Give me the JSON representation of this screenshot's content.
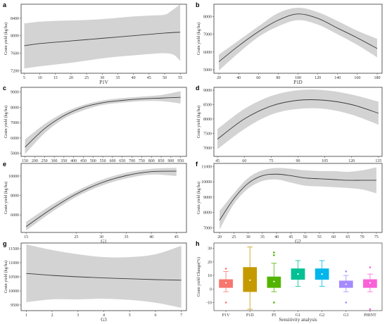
{
  "chart_data": [
    {
      "panel": "a",
      "type": "line",
      "xlabel": "P1V",
      "ylabel": "Grain yield (kg/ha)",
      "xlim": [
        4,
        57
      ],
      "ylim": [
        7140,
        8720
      ],
      "xticks": [
        5,
        10,
        15,
        20,
        25,
        30,
        35,
        40,
        45,
        50,
        55
      ],
      "yticks": [
        7200,
        7600,
        8000,
        8400
      ],
      "series": [
        {
          "x": [
            5,
            10,
            15,
            20,
            25,
            30,
            35,
            40,
            45,
            50,
            55
          ],
          "y": [
            7770,
            7820,
            7850,
            7880,
            7910,
            7940,
            7970,
            8000,
            8030,
            8060,
            8080
          ]
        }
      ],
      "band_upper": [
        {
          "x": [
            5,
            10,
            15,
            20,
            25,
            30,
            35,
            40,
            45,
            50,
            52,
            55
          ],
          "y": [
            8280,
            8320,
            8340,
            8350,
            8360,
            8380,
            8410,
            8440,
            8460,
            8480,
            8560,
            8720
          ]
        }
      ],
      "band_lower": [
        {
          "x": [
            5,
            10,
            15,
            20,
            25,
            30,
            35,
            40,
            45,
            50,
            53,
            55
          ],
          "y": [
            7250,
            7300,
            7340,
            7380,
            7430,
            7480,
            7520,
            7550,
            7580,
            7600,
            7560,
            7420
          ]
        }
      ]
    },
    {
      "panel": "b",
      "type": "line",
      "xlabel": "P1D",
      "ylabel": "Grain yield (kg/ha)",
      "xlim": [
        15,
        185
      ],
      "ylim": [
        4800,
        8700
      ],
      "xticks": [
        20,
        40,
        60,
        80,
        100,
        120,
        140,
        160,
        180
      ],
      "yticks": [
        5000,
        6000,
        7000,
        8000
      ],
      "series": [
        {
          "x": [
            20,
            40,
            60,
            80,
            100,
            120,
            140,
            160,
            180
          ],
          "y": [
            5450,
            6350,
            7150,
            7800,
            8150,
            7900,
            7350,
            6800,
            6200
          ]
        }
      ],
      "band_upper": [
        {
          "x": [
            20,
            40,
            60,
            80,
            100,
            120,
            140,
            160,
            180
          ],
          "y": [
            5850,
            6650,
            7450,
            8200,
            8500,
            8250,
            7750,
            7200,
            6750
          ]
        }
      ],
      "band_lower": [
        {
          "x": [
            20,
            40,
            60,
            80,
            100,
            120,
            140,
            160,
            180
          ],
          "y": [
            4950,
            5950,
            6850,
            7450,
            7800,
            7550,
            7000,
            6400,
            5700
          ]
        }
      ]
    },
    {
      "panel": "c",
      "type": "line",
      "xlabel": "P5",
      "ylabel": "Grain yield (kg/ha)",
      "xlim": [
        130,
        980
      ],
      "ylim": [
        4800,
        9300
      ],
      "xticks": [
        150,
        200,
        250,
        300,
        350,
        400,
        450,
        500,
        550,
        600,
        650,
        700,
        750,
        800,
        850,
        900,
        950
      ],
      "yticks": [
        5000,
        6000,
        7000,
        8000,
        9000
      ],
      "series": [
        {
          "x": [
            150,
            250,
            350,
            450,
            550,
            650,
            750,
            850,
            950
          ],
          "y": [
            5400,
            6600,
            7450,
            8000,
            8300,
            8450,
            8550,
            8600,
            8650
          ]
        }
      ],
      "band_upper": [
        {
          "x": [
            150,
            250,
            350,
            450,
            550,
            650,
            750,
            850,
            950
          ],
          "y": [
            5900,
            6900,
            7650,
            8150,
            8450,
            8600,
            8700,
            8800,
            9050
          ]
        }
      ],
      "band_lower": [
        {
          "x": [
            150,
            250,
            350,
            450,
            550,
            650,
            750,
            850,
            950
          ],
          "y": [
            4950,
            6300,
            7250,
            7800,
            8150,
            8300,
            8400,
            8400,
            8250
          ]
        }
      ]
    },
    {
      "panel": "d",
      "type": "line",
      "xlabel": "PHINT",
      "ylabel": "Grain yield (kg/ha)",
      "xlim": [
        43,
        137
      ],
      "ylim": [
        6700,
        9100
      ],
      "xticks": [
        45,
        60,
        75,
        90,
        105,
        120,
        135
      ],
      "yticks": [
        7000,
        7500,
        8000,
        8500,
        9000
      ],
      "series": [
        {
          "x": [
            45,
            60,
            75,
            90,
            105,
            120,
            135
          ],
          "y": [
            7300,
            8000,
            8450,
            8650,
            8650,
            8500,
            8200
          ]
        }
      ],
      "band_upper": [
        {
          "x": [
            45,
            60,
            75,
            90,
            105,
            120,
            135
          ],
          "y": [
            7650,
            8350,
            8800,
            9000,
            9000,
            8850,
            8600
          ]
        }
      ],
      "band_lower": [
        {
          "x": [
            45,
            60,
            75,
            90,
            105,
            120,
            135
          ],
          "y": [
            6950,
            7650,
            8150,
            8350,
            8350,
            8150,
            7800
          ]
        }
      ]
    },
    {
      "panel": "e",
      "type": "line",
      "xlabel": "G1",
      "ylabel": "Grain yield (kg/ha)",
      "xlim": [
        14,
        47
      ],
      "ylim": [
        4200,
        11300
      ],
      "xticks": [
        15,
        25,
        30,
        35,
        40,
        45
      ],
      "yticks": [
        6000,
        8000,
        10000
      ],
      "series": [
        {
          "x": [
            15,
            20,
            25,
            30,
            35,
            40,
            45
          ],
          "y": [
            4800,
            6600,
            8150,
            9300,
            10050,
            10450,
            10500
          ]
        }
      ],
      "band_upper": [
        {
          "x": [
            15,
            20,
            25,
            30,
            35,
            40,
            45
          ],
          "y": [
            5300,
            7000,
            8450,
            9600,
            10350,
            10750,
            10850
          ]
        }
      ],
      "band_lower": [
        {
          "x": [
            15,
            20,
            25,
            30,
            35,
            40,
            45
          ],
          "y": [
            4400,
            6250,
            7850,
            9000,
            9750,
            10150,
            10000
          ]
        }
      ]
    },
    {
      "panel": "f",
      "type": "line",
      "xlabel": "G2",
      "ylabel": "Grain yield (kg/ha)",
      "xlim": [
        18,
        77
      ],
      "ylim": [
        6700,
        11200
      ],
      "xticks": [
        20,
        25,
        30,
        35,
        40,
        45,
        50,
        55,
        60,
        65,
        70,
        75
      ],
      "yticks": [
        7000,
        8000,
        9000,
        10000,
        11000
      ],
      "series": [
        {
          "x": [
            20,
            25,
            30,
            35,
            40,
            45,
            50,
            55,
            60,
            65,
            70,
            75
          ],
          "y": [
            7500,
            8900,
            9900,
            10400,
            10500,
            10400,
            10250,
            10200,
            10150,
            10100,
            10100,
            10100
          ]
        }
      ],
      "band_upper": [
        {
          "x": [
            20,
            25,
            30,
            35,
            40,
            45,
            50,
            55,
            60,
            65,
            70,
            75
          ],
          "y": [
            8100,
            9250,
            10250,
            10750,
            10900,
            10850,
            10750,
            10700,
            10700,
            10650,
            10750,
            10950
          ]
        }
      ],
      "band_lower": [
        {
          "x": [
            20,
            25,
            30,
            35,
            40,
            45,
            50,
            55,
            60,
            65,
            70,
            75
          ],
          "y": [
            6900,
            8550,
            9550,
            10050,
            10150,
            9950,
            9750,
            9700,
            9650,
            9600,
            9500,
            9250
          ]
        }
      ]
    },
    {
      "panel": "g",
      "type": "line",
      "xlabel": "G3",
      "ylabel": "Grain yield (kg/ha)",
      "xlim": [
        0.8,
        7.2
      ],
      "ylim": [
        9300,
        11700
      ],
      "xticks": [
        1,
        2,
        3,
        4,
        5,
        6,
        7
      ],
      "yticks": [
        9500,
        10000,
        10500,
        11000,
        11500
      ],
      "series": [
        {
          "x": [
            1,
            2,
            3,
            4,
            5,
            6,
            7
          ],
          "y": [
            10620,
            10550,
            10500,
            10460,
            10430,
            10400,
            10380
          ]
        }
      ],
      "band_upper": [
        {
          "x": [
            1,
            2,
            3,
            4,
            5,
            6,
            7
          ],
          "y": [
            11650,
            11450,
            11300,
            11200,
            11200,
            11300,
            11600
          ]
        }
      ],
      "band_lower": [
        {
          "x": [
            1,
            2,
            3,
            4,
            5,
            6,
            7
          ],
          "y": [
            9600,
            9700,
            9700,
            9720,
            9680,
            9580,
            9400
          ]
        }
      ]
    },
    {
      "panel": "h",
      "type": "box",
      "xlabel": "Sensitivity analysis",
      "ylabel": "Grain yield Change(%)",
      "ylim": [
        -16,
        34
      ],
      "yticks": [
        -10,
        0,
        10,
        20,
        30
      ],
      "categories": [
        "P1V",
        "P1D",
        "P5",
        "G1",
        "G2",
        "G3",
        "PHINT"
      ],
      "colors": [
        "#f8766d",
        "#c49a00",
        "#53b400",
        "#00c094",
        "#00b6eb",
        "#a58aff",
        "#fb61d7"
      ],
      "boxes": [
        {
          "q1": 1,
          "median": 4,
          "q3": 7,
          "lo": -2,
          "hi": 13,
          "mean": 4.5,
          "outliers": [
            15,
            -10
          ]
        },
        {
          "q1": -2,
          "median": 7,
          "q3": 16,
          "lo": -15,
          "hi": 31,
          "mean": 6.5,
          "outliers": []
        },
        {
          "q1": 1,
          "median": 5,
          "q3": 9,
          "lo": -2,
          "hi": 19,
          "mean": 5.5,
          "outliers": [
            25,
            27,
            -10
          ]
        },
        {
          "q1": 7,
          "median": 11,
          "q3": 15,
          "lo": 2,
          "hi": 21,
          "mean": 11,
          "outliers": []
        },
        {
          "q1": 7,
          "median": 11,
          "q3": 15,
          "lo": 2,
          "hi": 21,
          "mean": 11,
          "outliers": []
        },
        {
          "q1": 1,
          "median": 3,
          "q3": 6,
          "lo": -2,
          "hi": 10,
          "mean": 3.5,
          "outliers": [
            13,
            -10
          ]
        },
        {
          "q1": 1,
          "median": 4,
          "q3": 7,
          "lo": -2,
          "hi": 11,
          "mean": 4.5,
          "outliers": [
            16,
            -15
          ]
        }
      ]
    }
  ]
}
